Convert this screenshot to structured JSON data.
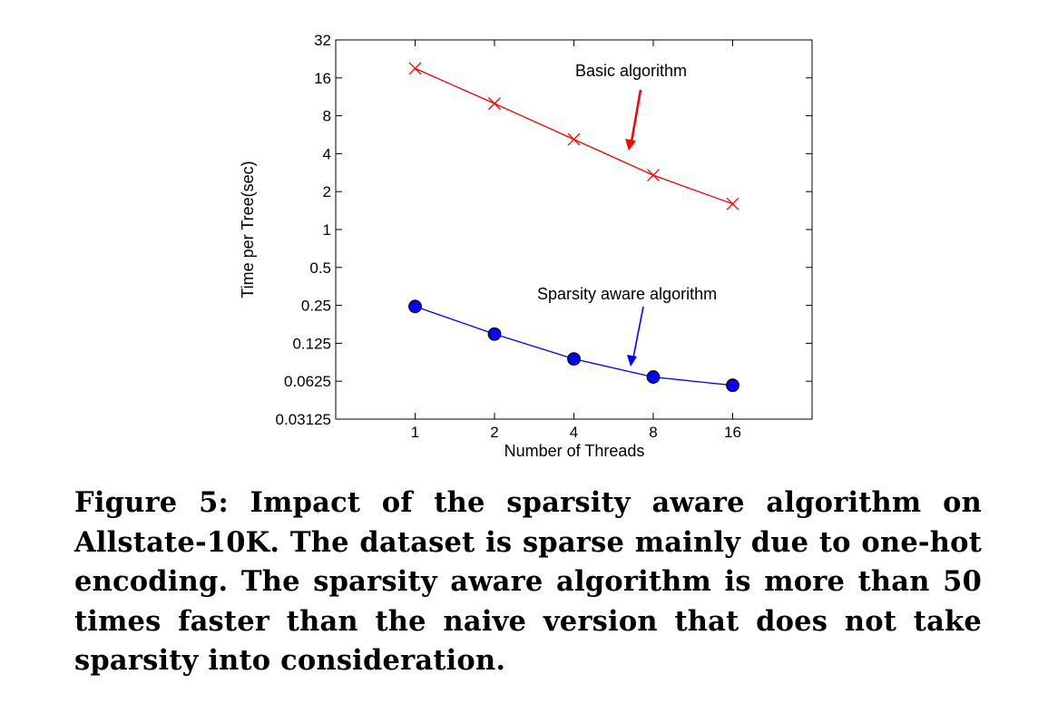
{
  "chart_data": {
    "type": "line",
    "xlabel": "Number of Threads",
    "ylabel": "Time per Tree(sec)",
    "x_scale": "log2",
    "y_scale": "log2",
    "categories": [
      "1",
      "2",
      "4",
      "8",
      "16"
    ],
    "x": [
      1,
      2,
      4,
      8,
      16
    ],
    "ylim": [
      0.03125,
      32
    ],
    "xlim": [
      0.5,
      32
    ],
    "y_ticks": [
      "32",
      "16",
      "8",
      "4",
      "2",
      "1",
      "0.5",
      "0.25",
      "0.125",
      "0.0625",
      "0.03125"
    ],
    "series": [
      {
        "name": "Basic algorithm",
        "color": "#ff0000",
        "marker": "x",
        "values": [
          19.0,
          10.0,
          5.2,
          2.7,
          1.6
        ]
      },
      {
        "name": "Sparsity aware algorithm",
        "color": "#0000ff",
        "marker": "circle",
        "values": [
          0.245,
          0.148,
          0.094,
          0.0675,
          0.058
        ]
      }
    ],
    "grid": false
  },
  "caption": "Figure 5: Impact of the sparsity aware algorithm on Allstate-10K. The dataset is sparse mainly due to one-hot encoding. The sparsity aware algorithm is more than 50 times faster than the naive version that does not take sparsity into consideration."
}
